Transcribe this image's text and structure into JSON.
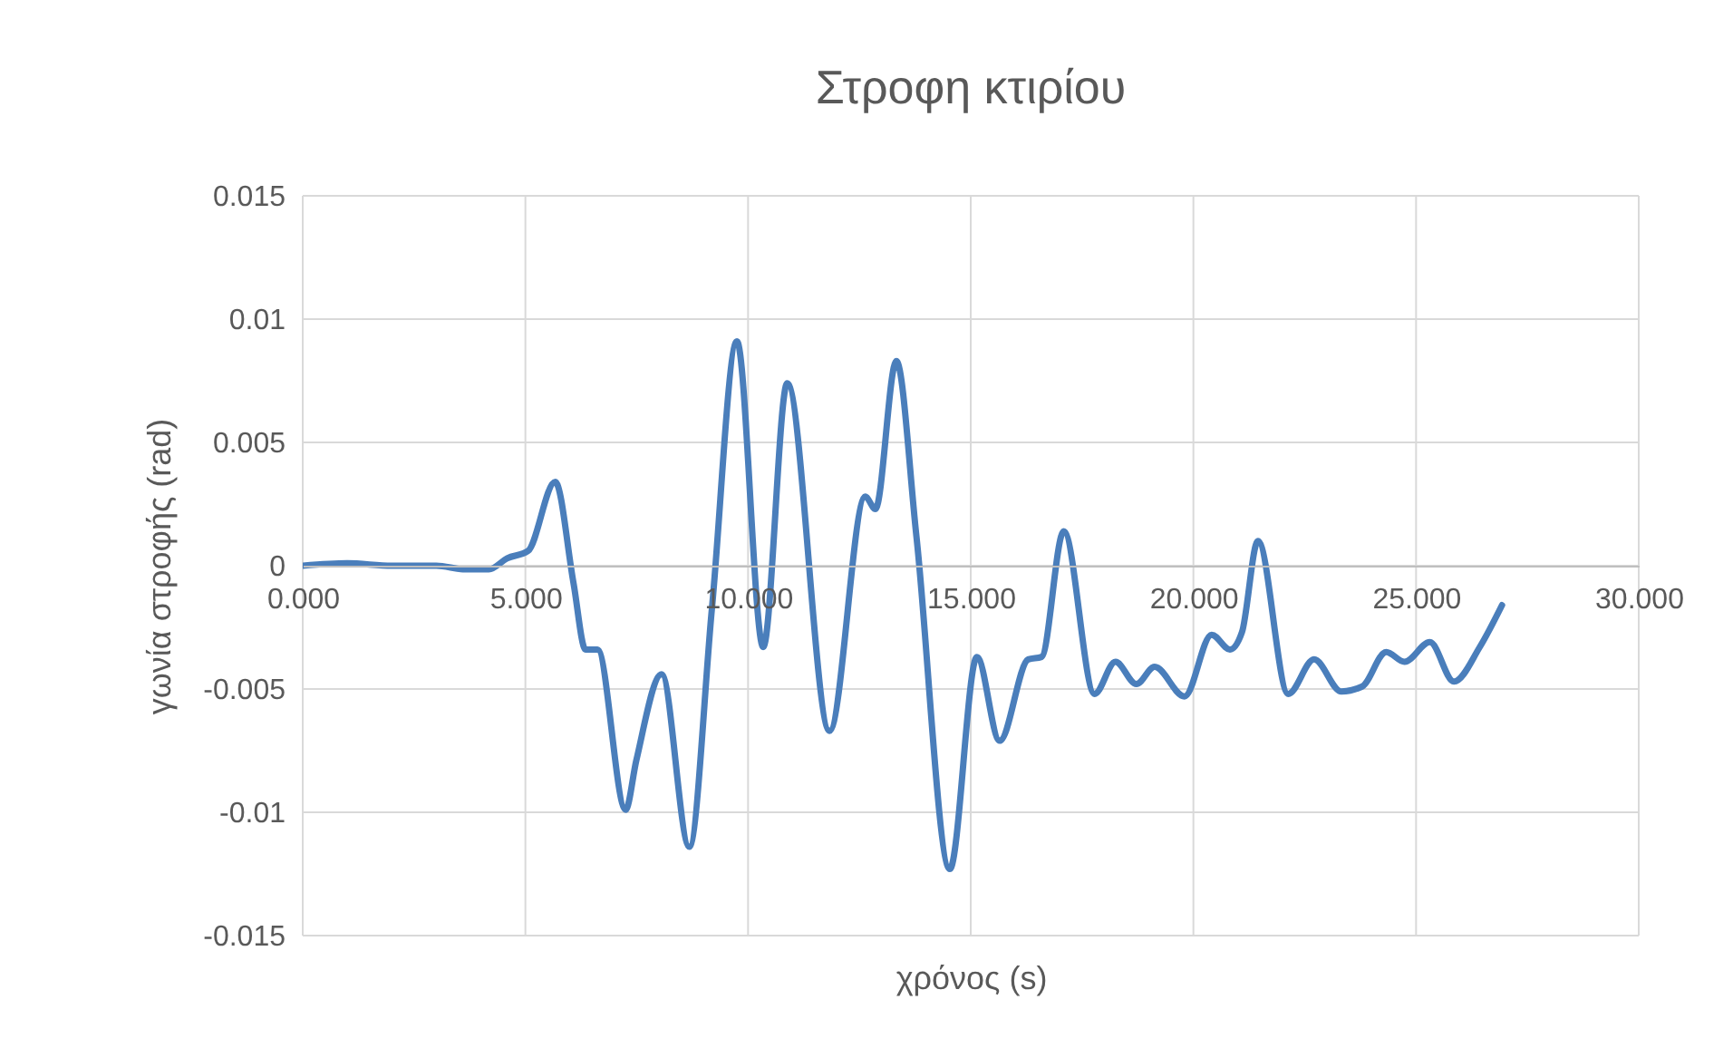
{
  "chart_data": {
    "type": "line",
    "title": "Στροφη κτιρίου",
    "xlabel": "χρόνος (s)",
    "ylabel": "γωνία στροφής (rad)",
    "xlim": [
      0,
      30
    ],
    "xticks": [
      {
        "value": 0,
        "label": "0.000"
      },
      {
        "value": 5,
        "label": "5.000"
      },
      {
        "value": 10,
        "label": "10.000"
      },
      {
        "value": 15,
        "label": "15.000"
      },
      {
        "value": 20,
        "label": "20.000"
      },
      {
        "value": 25,
        "label": "25.000"
      },
      {
        "value": 30,
        "label": "30.000"
      }
    ],
    "ylim": [
      -0.015,
      0.015
    ],
    "yticks": [
      -0.015,
      -0.01,
      -0.005,
      0,
      0.005,
      0.01,
      0.015
    ],
    "grid": true,
    "marker": "none",
    "x": [
      0,
      1,
      2,
      3,
      3.64,
      4.18,
      4.59,
      5.06,
      5.67,
      6.08,
      6.35,
      6.62,
      7.25,
      7.49,
      8.06,
      8.68,
      9.19,
      9.75,
      10.34,
      10.88,
      11.83,
      12.63,
      12.86,
      13.33,
      13.78,
      14.53,
      15.14,
      15.65,
      16.29,
      16.59,
      17.09,
      17.78,
      18.25,
      18.72,
      19.13,
      19.8,
      20.41,
      20.82,
      21.09,
      21.45,
      22.13,
      22.71,
      23.32,
      23.79,
      24.33,
      24.74,
      25.31,
      25.85,
      26.43,
      26.93
    ],
    "series": [
      {
        "color": "#4a7ebb",
        "values": [
          0,
          0.0001,
          0,
          0,
          -0.00015,
          -0.00015,
          0.0003,
          0.0006,
          0.0034,
          -0.0007,
          -0.0034,
          -0.0034,
          -0.0099,
          -0.0079,
          -0.0044,
          -0.0114,
          -0.0017,
          0.0091,
          -0.0033,
          0.0074,
          -0.0067,
          0.0028,
          0.0023,
          0.0083,
          0.0012,
          -0.0123,
          -0.0037,
          -0.0071,
          -0.0038,
          -0.0037,
          0.0014,
          -0.0052,
          -0.0039,
          -0.0048,
          -0.0041,
          -0.0053,
          -0.0028,
          -0.0034,
          -0.0027,
          0.001,
          -0.0052,
          -0.0038,
          -0.0051,
          -0.0049,
          -0.0035,
          -0.0039,
          -0.0031,
          -0.0047,
          -0.0033,
          -0.0016
        ]
      }
    ]
  }
}
